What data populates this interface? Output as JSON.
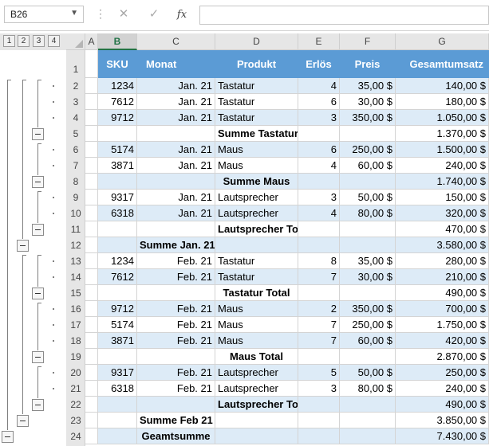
{
  "formula_bar": {
    "name_box": "B26",
    "cancel_icon": "✕",
    "confirm_icon": "✓",
    "fx_label": "fx",
    "formula_value": ""
  },
  "outline_levels": [
    "1",
    "2",
    "3",
    "4"
  ],
  "columns": [
    "A",
    "B",
    "C",
    "D",
    "E",
    "F",
    "G"
  ],
  "selected_column": "B",
  "table": {
    "headers": [
      "SKU",
      "Monat",
      "Produkt",
      "Erlös",
      "Preis",
      "Gesamtumsatz"
    ],
    "rows": [
      {
        "num": "2",
        "sku": "1234",
        "monat": "Jan. 21",
        "produkt": "Tastatur",
        "erloes": "4",
        "preis": "35,00 $",
        "gesamt": "140,00 $"
      },
      {
        "num": "3",
        "sku": "7612",
        "monat": "Jan. 21",
        "produkt": "Tastatur",
        "erloes": "6",
        "preis": "30,00 $",
        "gesamt": "180,00 $"
      },
      {
        "num": "4",
        "sku": "9712",
        "monat": "Jan. 21",
        "produkt": "Tastatur",
        "erloes": "3",
        "preis": "350,00 $",
        "gesamt": "1.050,00 $"
      },
      {
        "num": "5",
        "sku": "",
        "monat": "",
        "produkt": "Summe Tastatur",
        "erloes": "",
        "preis": "",
        "gesamt": "1.370,00 $"
      },
      {
        "num": "6",
        "sku": "5174",
        "monat": "Jan. 21",
        "produkt": "Maus",
        "erloes": "6",
        "preis": "250,00 $",
        "gesamt": "1.500,00 $"
      },
      {
        "num": "7",
        "sku": "3871",
        "monat": "Jan. 21",
        "produkt": "Maus",
        "erloes": "4",
        "preis": "60,00 $",
        "gesamt": "240,00 $"
      },
      {
        "num": "8",
        "sku": "",
        "monat": "",
        "produkt": "Summe Maus",
        "erloes": "",
        "preis": "",
        "gesamt": "1.740,00 $"
      },
      {
        "num": "9",
        "sku": "9317",
        "monat": "Jan. 21",
        "produkt": "Lautsprecher",
        "erloes": "3",
        "preis": "50,00 $",
        "gesamt": "150,00 $"
      },
      {
        "num": "10",
        "sku": "6318",
        "monat": "Jan. 21",
        "produkt": "Lautsprecher",
        "erloes": "4",
        "preis": "80,00 $",
        "gesamt": "320,00 $"
      },
      {
        "num": "11",
        "sku": "",
        "monat": "",
        "produkt": "Lautsprecher Total",
        "erloes": "",
        "preis": "",
        "gesamt": "470,00 $"
      },
      {
        "num": "12",
        "sku": "",
        "monat": "Summe Jan. 21",
        "produkt": "",
        "erloes": "",
        "preis": "",
        "gesamt": "3.580,00 $"
      },
      {
        "num": "13",
        "sku": "1234",
        "monat": "Feb. 21",
        "produkt": "Tastatur",
        "erloes": "8",
        "preis": "35,00 $",
        "gesamt": "280,00 $"
      },
      {
        "num": "14",
        "sku": "7612",
        "monat": "Feb. 21",
        "produkt": "Tastatur",
        "erloes": "7",
        "preis": "30,00 $",
        "gesamt": "210,00 $"
      },
      {
        "num": "15",
        "sku": "",
        "monat": "",
        "produkt": "Tastatur Total",
        "erloes": "",
        "preis": "",
        "gesamt": "490,00 $"
      },
      {
        "num": "16",
        "sku": "9712",
        "monat": "Feb. 21",
        "produkt": "Maus",
        "erloes": "2",
        "preis": "350,00 $",
        "gesamt": "700,00 $"
      },
      {
        "num": "17",
        "sku": "5174",
        "monat": "Feb. 21",
        "produkt": "Maus",
        "erloes": "7",
        "preis": "250,00 $",
        "gesamt": "1.750,00 $"
      },
      {
        "num": "18",
        "sku": "3871",
        "monat": "Feb. 21",
        "produkt": "Maus",
        "erloes": "7",
        "preis": "60,00 $",
        "gesamt": "420,00 $"
      },
      {
        "num": "19",
        "sku": "",
        "monat": "",
        "produkt": "Maus Total",
        "erloes": "",
        "preis": "",
        "gesamt": "2.870,00 $"
      },
      {
        "num": "20",
        "sku": "9317",
        "monat": "Feb. 21",
        "produkt": "Lautsprecher",
        "erloes": "5",
        "preis": "50,00 $",
        "gesamt": "250,00 $"
      },
      {
        "num": "21",
        "sku": "6318",
        "monat": "Feb. 21",
        "produkt": "Lautsprecher",
        "erloes": "3",
        "preis": "80,00 $",
        "gesamt": "240,00 $"
      },
      {
        "num": "22",
        "sku": "",
        "monat": "",
        "produkt": "Lautsprecher Total",
        "erloes": "",
        "preis": "",
        "gesamt": "490,00 $"
      },
      {
        "num": "23",
        "sku": "",
        "monat": "Summe Feb 21",
        "produkt": "",
        "erloes": "",
        "preis": "",
        "gesamt": "3.850,00 $"
      },
      {
        "num": "24",
        "sku": "",
        "monat": "Geamtsumme",
        "produkt": "",
        "erloes": "",
        "preis": "",
        "gesamt": "7.430,00 $"
      }
    ]
  },
  "header_row_num": "1",
  "colors": {
    "header_fill": "#5b9bd5",
    "band_fill": "#ddebf7",
    "selection_accent": "#217346"
  }
}
